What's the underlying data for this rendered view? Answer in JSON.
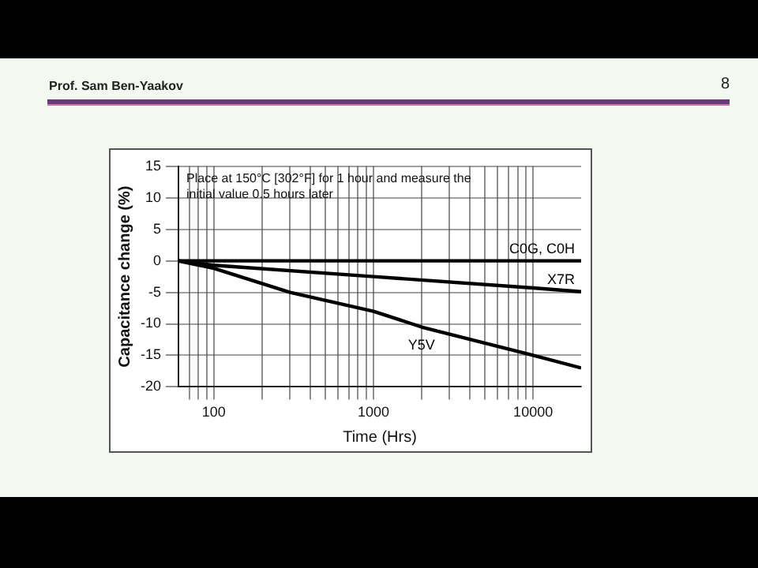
{
  "chart_data": {
    "type": "line",
    "xlabel": "Time (Hrs)",
    "ylabel": "Capacitance change (%)",
    "annotations": [
      "Place at 150°C [302°F] for 1 hour and measure the initial value 0.5 hours later",
      "Prof. Sam Ben-Yaakov",
      "8"
    ],
    "series": [
      {
        "name": "C0G, C0H",
        "color": "#000000",
        "x": [
          60,
          20000
        ],
        "values": [
          0,
          0
        ]
      },
      {
        "name": "X7R",
        "color": "#000000",
        "x": [
          60,
          100,
          1000,
          10000,
          20000
        ],
        "values": [
          0,
          -0.7,
          -2.5,
          -4.3,
          -4.9
        ]
      },
      {
        "name": "Y5V",
        "color": "#000000",
        "x": [
          60,
          100,
          300,
          1000,
          2000,
          10000,
          20000
        ],
        "values": [
          0,
          -1.2,
          -5,
          -8,
          -10.5,
          -15,
          -17
        ]
      }
    ],
    "log": "x",
    "xlim": [
      60,
      20000
    ],
    "xticks": [
      {
        "value": 70,
        "label": null
      },
      {
        "value": 80,
        "label": null
      },
      {
        "value": 90,
        "label": null
      },
      100,
      {
        "value": 200,
        "label": null
      },
      {
        "value": 300,
        "label": null
      },
      {
        "value": 400,
        "label": null
      },
      {
        "value": 500,
        "label": null
      },
      {
        "value": 600,
        "label": null
      },
      {
        "value": 700,
        "label": null
      },
      {
        "value": 800,
        "label": null
      },
      {
        "value": 900,
        "label": null
      },
      1000,
      {
        "value": 2000,
        "label": null
      },
      {
        "value": 3000,
        "label": null
      },
      {
        "value": 4000,
        "label": null
      },
      {
        "value": 5000,
        "label": null
      },
      {
        "value": 6000,
        "label": null
      },
      {
        "value": 7000,
        "label": null
      },
      {
        "value": 8000,
        "label": null
      },
      {
        "value": 9000,
        "label": null
      },
      10000
    ],
    "ylim": [
      -20,
      15
    ],
    "yticks": [
      -20,
      -15,
      -10,
      -5,
      0,
      5,
      10,
      15
    ],
    "grid": true,
    "legend": false,
    "marker": "none",
    "line_style": "solid"
  }
}
